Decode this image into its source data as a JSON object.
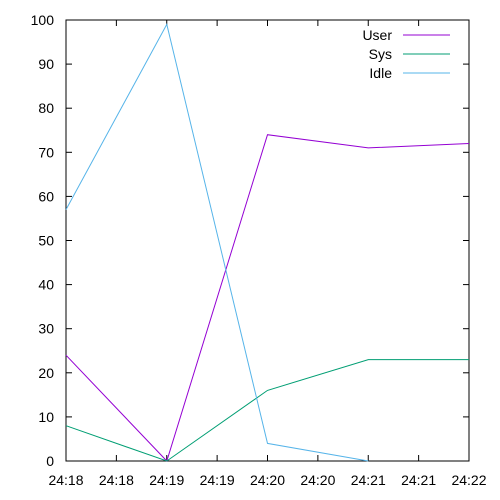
{
  "chart_data": {
    "type": "line",
    "title": "",
    "xlabel": "",
    "ylabel": "",
    "x": [
      "24:18",
      "24:18",
      "24:19",
      "24:19",
      "24:20",
      "24:20",
      "24:21",
      "24:21",
      "24:22"
    ],
    "y_ticks": [
      0,
      10,
      20,
      30,
      40,
      50,
      60,
      70,
      80,
      90,
      100
    ],
    "ylim": [
      0,
      100
    ],
    "grid": false,
    "legend": "top-right",
    "series": [
      {
        "name": "User",
        "color": "#9400d3",
        "points": [
          [
            0,
            24
          ],
          [
            2,
            0
          ],
          [
            4,
            74
          ],
          [
            6,
            71
          ],
          [
            8,
            72
          ]
        ]
      },
      {
        "name": "Sys",
        "color": "#009e73",
        "points": [
          [
            0,
            8
          ],
          [
            2,
            0
          ],
          [
            4,
            16
          ],
          [
            6,
            23
          ],
          [
            8,
            23
          ]
        ]
      },
      {
        "name": "Idle",
        "color": "#56b4e9",
        "points": [
          [
            0,
            57
          ],
          [
            2,
            99
          ],
          [
            4,
            4
          ],
          [
            6,
            0
          ]
        ]
      }
    ]
  }
}
